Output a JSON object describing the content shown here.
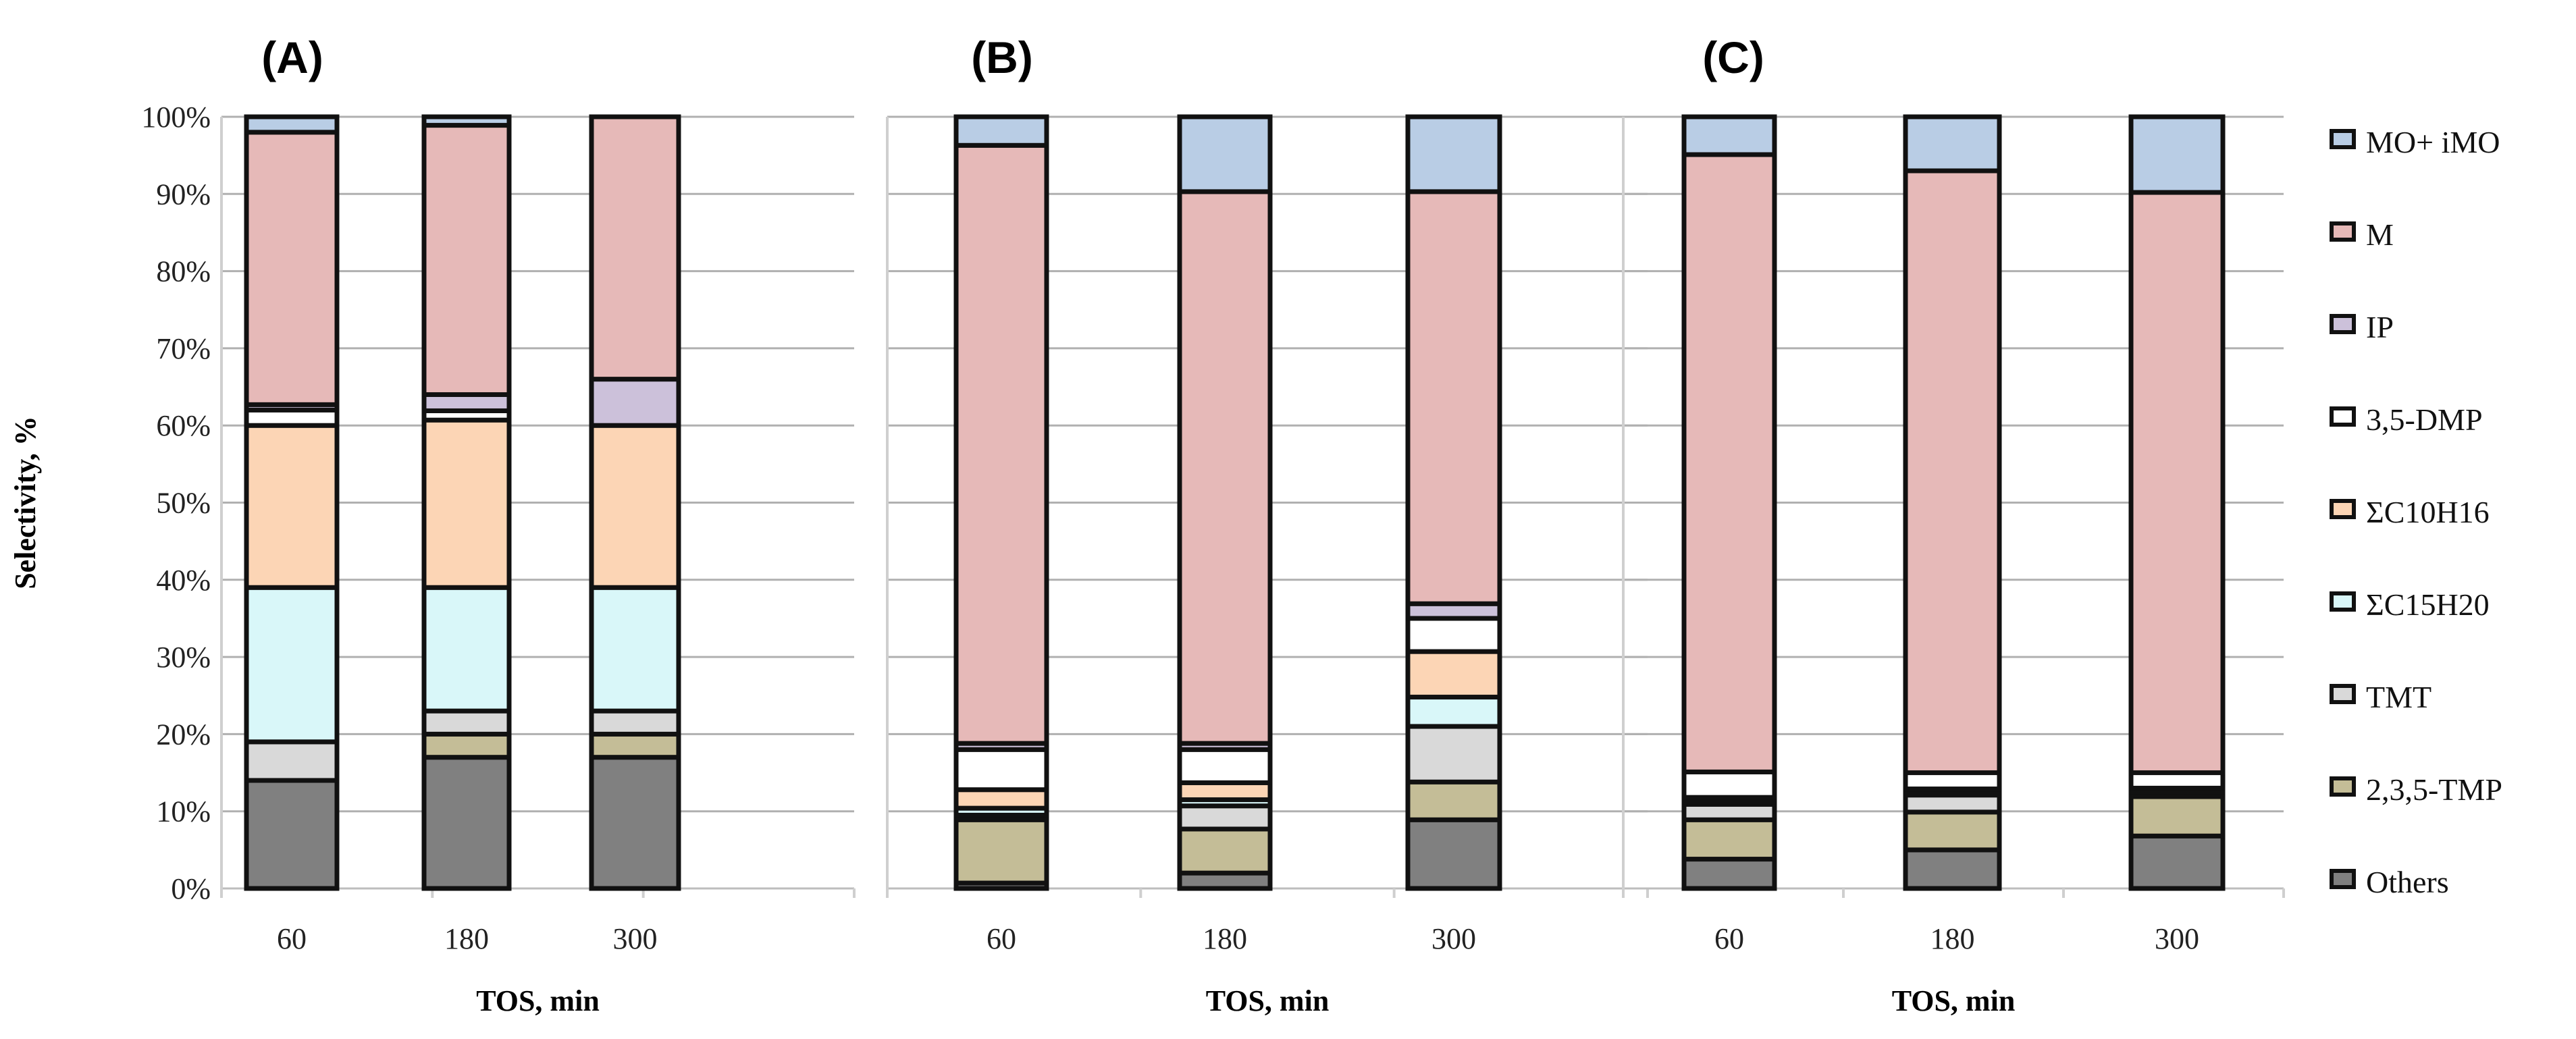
{
  "chart_data": {
    "type": "bar",
    "stacked": true,
    "ylabel": "Selectivity, %",
    "xlabel": "TOS, min",
    "ylim": [
      0,
      100
    ],
    "yticks": [
      "0%",
      "10%",
      "20%",
      "30%",
      "40%",
      "50%",
      "60%",
      "70%",
      "80%",
      "90%",
      "100%"
    ],
    "grid": true,
    "legend_position": "right",
    "categories": [
      "60",
      "180",
      "300"
    ],
    "series_meta": [
      {
        "name": "Others",
        "color": "#808080"
      },
      {
        "name": "2,3,5-TMP",
        "color": "#c4bd97"
      },
      {
        "name": "TMT",
        "color": "#d9d9d9"
      },
      {
        "name": "ΣC15H20",
        "color": "#d9f7f9"
      },
      {
        "name": "ΣC10H16",
        "color": "#fcd5b5"
      },
      {
        "name": "3,5-DMP",
        "color": "#ffffff"
      },
      {
        "name": "IP",
        "color": "#ccc1da"
      },
      {
        "name": "M",
        "color": "#e6b9b8"
      },
      {
        "name": "MO+ iMO",
        "color": "#b9cde5"
      }
    ],
    "panels": [
      {
        "title": "(A)",
        "series": [
          {
            "name": "Others",
            "values": [
              14,
              17,
              17
            ]
          },
          {
            "name": "2,3,5-TMP",
            "values": [
              0,
              3,
              3
            ]
          },
          {
            "name": "TMT",
            "values": [
              5,
              3,
              3
            ]
          },
          {
            "name": "ΣC15H20",
            "values": [
              20,
              16,
              16
            ]
          },
          {
            "name": "ΣC10H16",
            "values": [
              21,
              21.7,
              21
            ]
          },
          {
            "name": "3,5-DMP",
            "values": [
              2,
              1.2,
              0
            ]
          },
          {
            "name": "IP",
            "values": [
              0.7,
              2.1,
              6
            ]
          },
          {
            "name": "M",
            "values": [
              35.3,
              34.9,
              34
            ]
          },
          {
            "name": "MO+ iMO",
            "values": [
              2,
              1.1,
              0
            ]
          }
        ]
      },
      {
        "title": "(B)",
        "series": [
          {
            "name": "Others",
            "values": [
              0.7,
              2,
              8.9
            ]
          },
          {
            "name": "2,3,5-TMP",
            "values": [
              8.2,
              5.7,
              4.9
            ]
          },
          {
            "name": "TMT",
            "values": [
              0.6,
              3,
              7.2
            ]
          },
          {
            "name": "ΣC15H20",
            "values": [
              0.9,
              0.8,
              3.8
            ]
          },
          {
            "name": "ΣC10H16",
            "values": [
              2.4,
              2.2,
              5.9
            ]
          },
          {
            "name": "3,5-DMP",
            "values": [
              5.2,
              4.3,
              4.3
            ]
          },
          {
            "name": "IP",
            "values": [
              0.8,
              0.8,
              1.9
            ]
          },
          {
            "name": "M",
            "values": [
              77.5,
              71.5,
              53.4
            ]
          },
          {
            "name": "MO+ iMO",
            "values": [
              3.7,
              9.7,
              9.7
            ]
          }
        ]
      },
      {
        "title": "(C)",
        "series": [
          {
            "name": "Others",
            "values": [
              3.8,
              5,
              6.8
            ]
          },
          {
            "name": "2,3,5-TMP",
            "values": [
              5.1,
              4.9,
              5.1
            ]
          },
          {
            "name": "TMT",
            "values": [
              2,
              2.2,
              0.6
            ]
          },
          {
            "name": "ΣC15H20",
            "values": [
              0.3,
              0.3,
              0.2
            ]
          },
          {
            "name": "ΣC10H16",
            "values": [
              0.6,
              0.5,
              0.3
            ]
          },
          {
            "name": "3,5-DMP",
            "values": [
              3.3,
              2.1,
              2
            ]
          },
          {
            "name": "IP",
            "values": [
              0,
              0,
              0
            ]
          },
          {
            "name": "M",
            "values": [
              80,
              78,
              75.2
            ]
          },
          {
            "name": "MO+ iMO",
            "values": [
              4.9,
              7,
              9.8
            ]
          }
        ]
      }
    ]
  }
}
